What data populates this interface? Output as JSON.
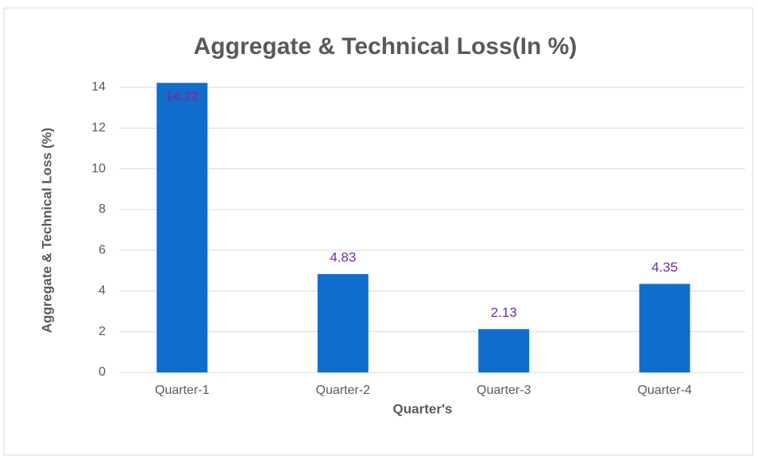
{
  "chart_data": {
    "type": "bar",
    "title": "Aggregate & Technical Loss(In %)",
    "x_label": "Quarter's",
    "y_label": "Aggregate & Technical Loss (%)",
    "categories": [
      "Quarter-1",
      "Quarter-2",
      "Quarter-3",
      "Quarter-4"
    ],
    "values": [
      14.22,
      4.83,
      2.13,
      4.35
    ],
    "color": "#0f6ecb",
    "label_color": "#7030a0",
    "ylim": [
      0,
      14
    ],
    "yticks": [
      0,
      2,
      4,
      6,
      8,
      10,
      12,
      14
    ],
    "grid": true
  }
}
